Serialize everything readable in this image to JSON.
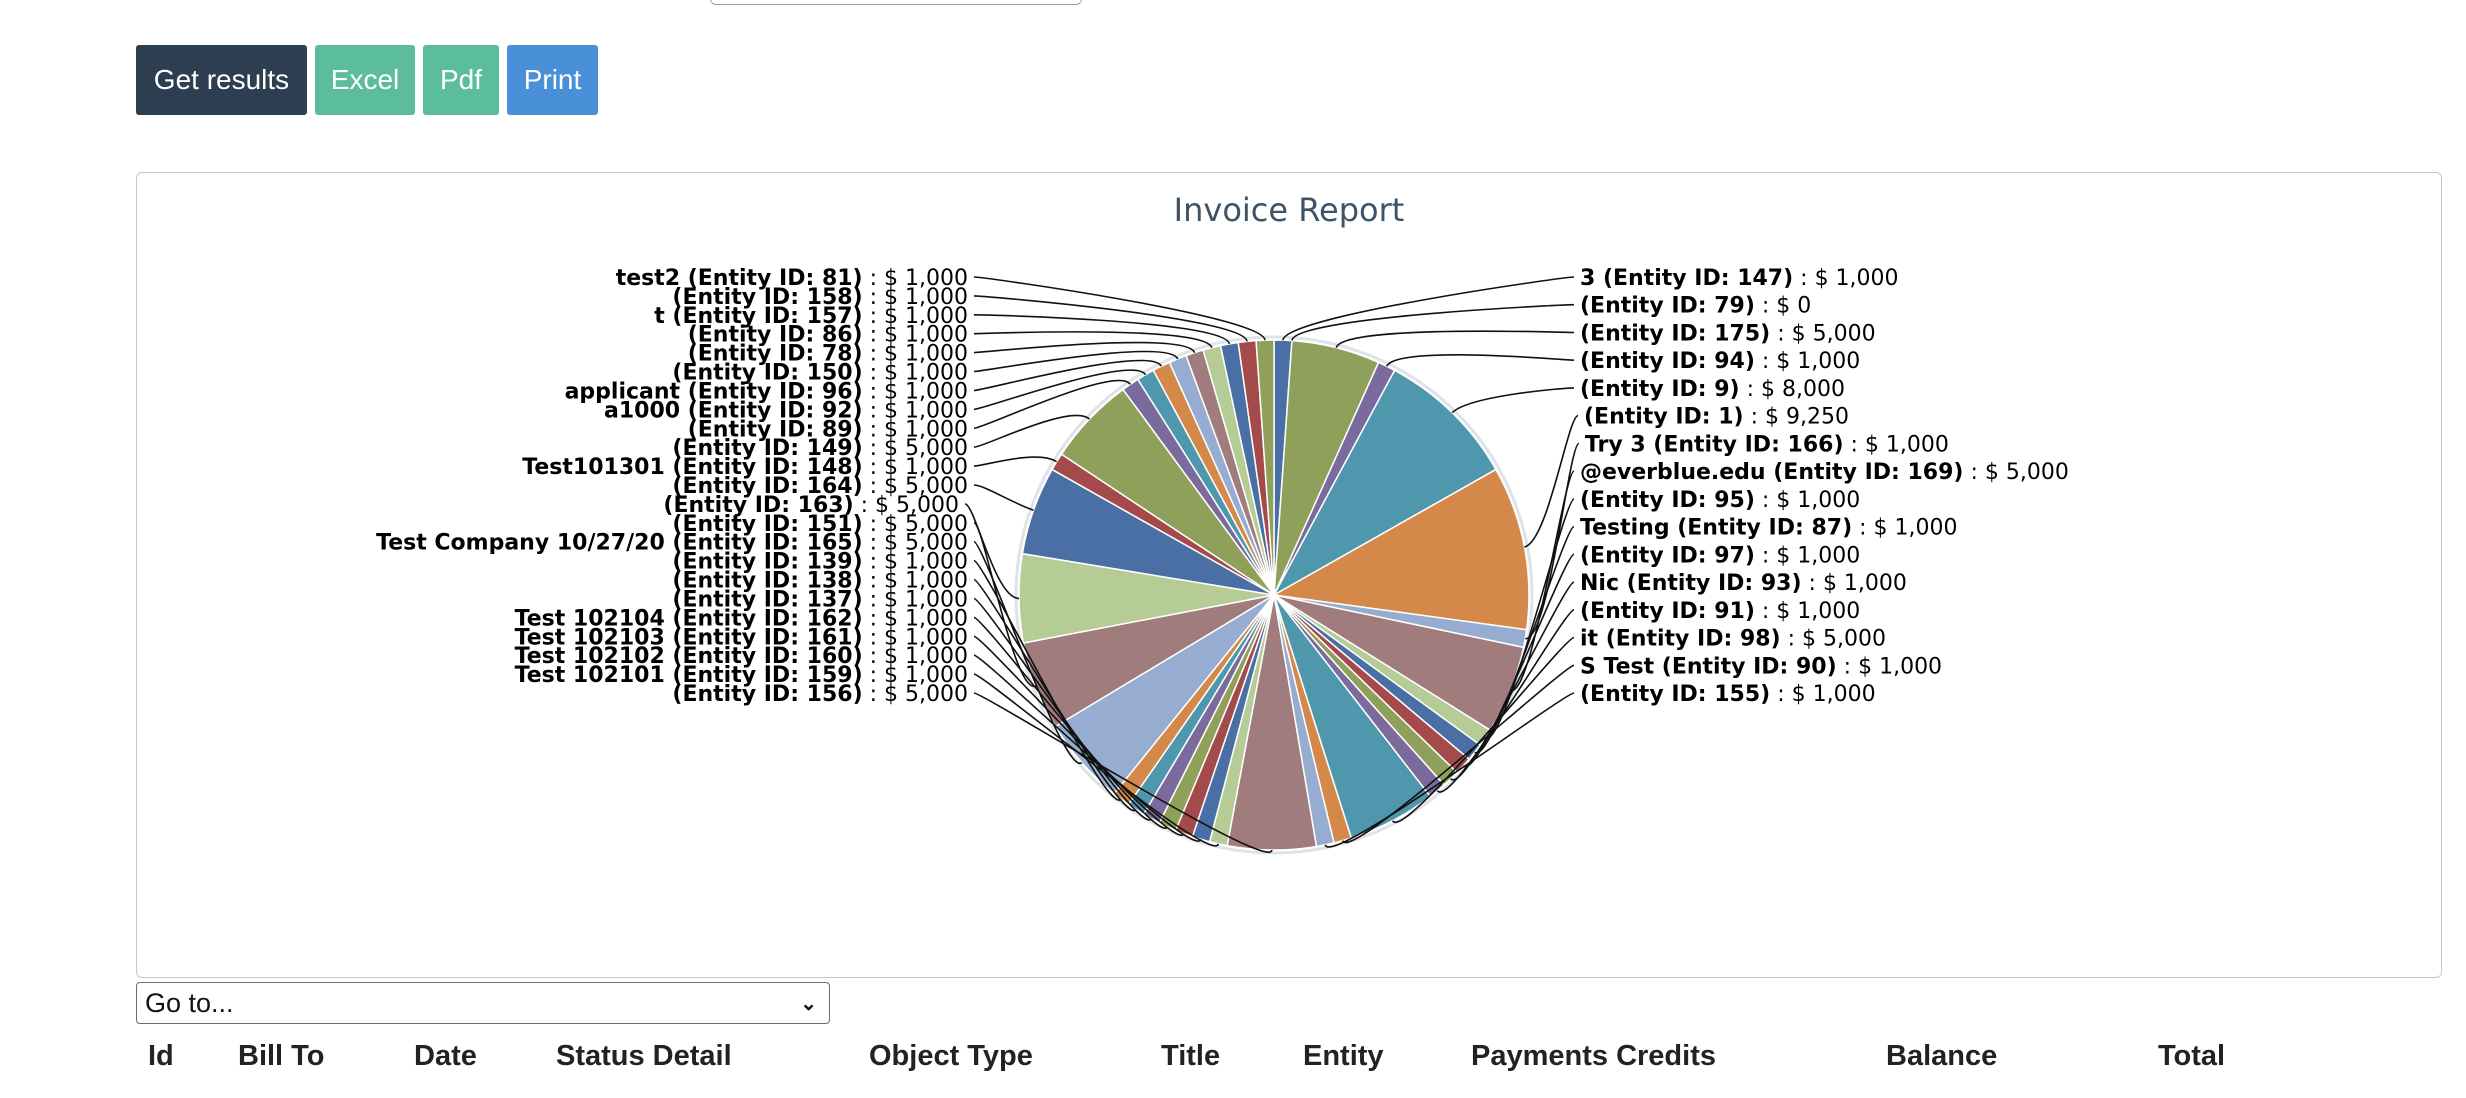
{
  "buttons": {
    "get_results": "Get results",
    "excel": "Excel",
    "pdf": "Pdf",
    "print": "Print"
  },
  "chart_title": "Invoice Report",
  "goto": {
    "selected": "Go to..."
  },
  "table": {
    "headers": [
      "Id",
      "Bill To",
      "Date",
      "Status Detail",
      "Object Type",
      "Title",
      "Entity",
      "Payments Credits",
      "Balance",
      "Total"
    ]
  },
  "colors": {
    "get_results": "#2c3e50",
    "excel": "#5cbd9b",
    "pdf": "#5cbd9b",
    "print": "#4a90d9",
    "title": "#3e5368"
  },
  "chart_data": {
    "type": "pie",
    "title": "Invoice Report",
    "series": [
      {
        "label": "3 (Entity ID: 147)",
        "value": 1000,
        "display": "$ 1,000",
        "color": "#4a6fa5"
      },
      {
        "label": "(Entity ID: 79)",
        "value": 0,
        "display": "$ 0",
        "color": "#c9c9c9"
      },
      {
        "label": "(Entity ID: 175)",
        "value": 5000,
        "display": "$ 5,000",
        "color": "#8ea05a"
      },
      {
        "label": "(Entity ID: 94)",
        "value": 1000,
        "display": "$ 1,000",
        "color": "#7b6a9c"
      },
      {
        "label": "(Entity ID: 9)",
        "value": 8000,
        "display": "$ 8,000",
        "color": "#4e97ad"
      },
      {
        "label": "(Entity ID: 1)",
        "value": 9250,
        "display": "$ 9,250",
        "color": "#d4884a"
      },
      {
        "label": "Try 3 (Entity ID: 166)",
        "value": 1000,
        "display": "$ 1,000",
        "color": "#96acd0"
      },
      {
        "label": "@everblue.edu (Entity ID: 169)",
        "value": 5000,
        "display": "$ 5,000",
        "color": "#a07c7c"
      },
      {
        "label": "(Entity ID: 95)",
        "value": 1000,
        "display": "$ 1,000",
        "color": "#b6cc96"
      },
      {
        "label": "Testing (Entity ID: 87)",
        "value": 1000,
        "display": "$ 1,000",
        "color": "#4a6fa5"
      },
      {
        "label": "(Entity ID: 97)",
        "value": 1000,
        "display": "$ 1,000",
        "color": "#a44a4a"
      },
      {
        "label": "Nic (Entity ID: 93)",
        "value": 1000,
        "display": "$ 1,000",
        "color": "#8ea05a"
      },
      {
        "label": "(Entity ID: 91)",
        "value": 1000,
        "display": "$ 1,000",
        "color": "#7b6a9c"
      },
      {
        "label": "it (Entity ID: 98)",
        "value": 5000,
        "display": "$ 5,000",
        "color": "#4e97ad"
      },
      {
        "label": "S Test (Entity ID: 90)",
        "value": 1000,
        "display": "$ 1,000",
        "color": "#d4884a"
      },
      {
        "label": "(Entity ID: 155)",
        "value": 1000,
        "display": "$ 1,000",
        "color": "#96acd0"
      },
      {
        "label": "(Entity ID: 156)",
        "value": 5000,
        "display": "$ 5,000",
        "color": "#a07c7c"
      },
      {
        "label": "Test 102101 (Entity ID: 159)",
        "value": 1000,
        "display": "$ 1,000",
        "color": "#b6cc96"
      },
      {
        "label": "Test 102102 (Entity ID: 160)",
        "value": 1000,
        "display": "$ 1,000",
        "color": "#4a6fa5"
      },
      {
        "label": "Test 102103 (Entity ID: 161)",
        "value": 1000,
        "display": "$ 1,000",
        "color": "#a44a4a"
      },
      {
        "label": "Test 102104 (Entity ID: 162)",
        "value": 1000,
        "display": "$ 1,000",
        "color": "#8ea05a"
      },
      {
        "label": "(Entity ID: 137)",
        "value": 1000,
        "display": "$ 1,000",
        "color": "#7b6a9c"
      },
      {
        "label": "(Entity ID: 138)",
        "value": 1000,
        "display": "$ 1,000",
        "color": "#4e97ad"
      },
      {
        "label": "(Entity ID: 139)",
        "value": 1000,
        "display": "$ 1,000",
        "color": "#d4884a"
      },
      {
        "label": "Test Company 10/27/20 (Entity ID: 165)",
        "value": 5000,
        "display": "$ 5,000",
        "color": "#96acd0"
      },
      {
        "label": "(Entity ID: 151)",
        "value": 5000,
        "display": "$ 5,000",
        "color": "#a07c7c"
      },
      {
        "label": "(Entity ID: 163)",
        "value": 5000,
        "display": "$ 5,000",
        "color": "#b6cc96"
      },
      {
        "label": "(Entity ID: 164)",
        "value": 5000,
        "display": "$ 5,000",
        "color": "#4a6fa5"
      },
      {
        "label": "Test101301 (Entity ID: 148)",
        "value": 1000,
        "display": "$ 1,000",
        "color": "#a44a4a"
      },
      {
        "label": "(Entity ID: 149)",
        "value": 5000,
        "display": "$ 5,000",
        "color": "#8ea05a"
      },
      {
        "label": "(Entity ID: 89)",
        "value": 1000,
        "display": "$ 1,000",
        "color": "#7b6a9c"
      },
      {
        "label": "a1000 (Entity ID: 92)",
        "value": 1000,
        "display": "$ 1,000",
        "color": "#4e97ad"
      },
      {
        "label": "applicant (Entity ID: 96)",
        "value": 1000,
        "display": "$ 1,000",
        "color": "#d4884a"
      },
      {
        "label": "(Entity ID: 150)",
        "value": 1000,
        "display": "$ 1,000",
        "color": "#96acd0"
      },
      {
        "label": "(Entity ID: 78)",
        "value": 1000,
        "display": "$ 1,000",
        "color": "#a07c7c"
      },
      {
        "label": "(Entity ID: 86)",
        "value": 1000,
        "display": "$ 1,000",
        "color": "#b6cc96"
      },
      {
        "label": "t (Entity ID: 157)",
        "value": 1000,
        "display": "$ 1,000",
        "color": "#4a6fa5"
      },
      {
        "label": "(Entity ID: 158)",
        "value": 1000,
        "display": "$ 1,000",
        "color": "#a44a4a"
      },
      {
        "label": "test2 (Entity ID: 81)",
        "value": 1000,
        "display": "$ 1,000",
        "color": "#8ea05a"
      }
    ]
  }
}
